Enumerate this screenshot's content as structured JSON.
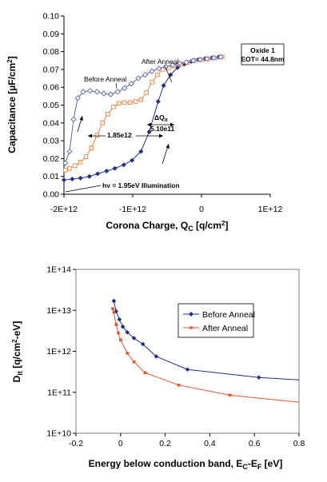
{
  "chart_data": [
    {
      "type": "line",
      "xlabel": "Corona Charge, Q",
      "xlabel_sub": "C",
      "xlabel_unit": " [q/cm",
      "xlabel_sup": "2",
      "xlabel_end": "]",
      "ylabel": "Capacitance [µF/cm",
      "ylabel_sup": "2",
      "ylabel_end": "]",
      "xlim": [
        -2000000000000.0,
        1000000000000.0
      ],
      "ylim": [
        0,
        0.1
      ],
      "x_ticks": [
        {
          "v": -2000000000000.0,
          "label": "-2E+12"
        },
        {
          "v": -1000000000000.0,
          "label": "-1E+12"
        },
        {
          "v": 0,
          "label": "0"
        },
        {
          "v": 1000000000000.0,
          "label": "1E+12"
        }
      ],
      "y_ticks": [
        {
          "v": 0,
          "label": "0.00"
        },
        {
          "v": 0.01,
          "label": "0.01"
        },
        {
          "v": 0.02,
          "label": "0.02"
        },
        {
          "v": 0.03,
          "label": "0.03"
        },
        {
          "v": 0.04,
          "label": "0.04"
        },
        {
          "v": 0.05,
          "label": "0.05"
        },
        {
          "v": 0.06,
          "label": "0.06"
        },
        {
          "v": 0.07,
          "label": "0.07"
        },
        {
          "v": 0.08,
          "label": "0.08"
        },
        {
          "v": 0.09,
          "label": "0.09"
        },
        {
          "v": 0.1,
          "label": "0.10"
        }
      ],
      "grid": false,
      "series": [
        {
          "color": "#1f2f8f",
          "marker": "filled-diamond",
          "x": [
            -2000000000000.0,
            -1880000000000.0,
            -1760000000000.0,
            -1630000000000.0,
            -1510000000000.0,
            -1380000000000.0,
            -1260000000000.0,
            -1130000000000.0,
            -1010000000000.0,
            -880000000000.0,
            -760000000000.0,
            -630000000000.0,
            -550000000000.0,
            -450000000000.0,
            -350000000000.0,
            -250000000000.0,
            -150000000000.0,
            -50000000000.0,
            50000000000.0,
            150000000000.0,
            250000000000.0
          ],
          "y": [
            0.008,
            0.0085,
            0.009,
            0.01,
            0.0115,
            0.013,
            0.0145,
            0.0165,
            0.019,
            0.024,
            0.035,
            0.052,
            0.061,
            0.067,
            0.071,
            0.073,
            0.0745,
            0.0755,
            0.076,
            0.0765,
            0.077
          ]
        },
        {
          "color": "#f07f3c",
          "marker": "open-square",
          "x": [
            -1980000000000.0,
            -1920000000000.0,
            -1840000000000.0,
            -1760000000000.0,
            -1680000000000.0,
            -1600000000000.0,
            -1520000000000.0,
            -1440000000000.0,
            -1360000000000.0,
            -1280000000000.0,
            -1200000000000.0,
            -1120000000000.0,
            -1040000000000.0,
            -960000000000.0,
            -880000000000.0,
            -800000000000.0,
            -720000000000.0,
            -640000000000.0,
            -560000000000.0,
            -480000000000.0,
            -400000000000.0,
            -300000000000.0,
            -200000000000.0,
            -100000000000.0,
            0.0,
            100000000000.0,
            200000000000.0,
            300000000000.0
          ],
          "y": [
            0.0135,
            0.0145,
            0.016,
            0.018,
            0.021,
            0.026,
            0.033,
            0.04,
            0.045,
            0.049,
            0.051,
            0.0515,
            0.0515,
            0.052,
            0.053,
            0.057,
            0.063,
            0.067,
            0.07,
            0.071,
            0.072,
            0.073,
            0.074,
            0.075,
            0.0755,
            0.076,
            0.0765,
            0.077
          ]
        },
        {
          "color": "#5a66b8",
          "marker": "open-diamond",
          "x": [
            -1980000000000.0,
            -1920000000000.0,
            -1860000000000.0,
            -1800000000000.0,
            -1720000000000.0,
            -1620000000000.0,
            -1520000000000.0,
            -1420000000000.0,
            -1320000000000.0,
            -1220000000000.0,
            -1120000000000.0,
            -1020000000000.0,
            -920000000000.0,
            -820000000000.0,
            -720000000000.0,
            -620000000000.0,
            -520000000000.0,
            -420000000000.0,
            -320000000000.0,
            -220000000000.0,
            -120000000000.0,
            -20000000000.0,
            80000000000.0,
            180000000000.0,
            280000000000.0
          ],
          "y": [
            0.0175,
            0.024,
            0.042,
            0.054,
            0.0575,
            0.058,
            0.0575,
            0.0565,
            0.056,
            0.0575,
            0.0595,
            0.062,
            0.065,
            0.067,
            0.069,
            0.0705,
            0.0715,
            0.0725,
            0.0735,
            0.074,
            0.075,
            0.0755,
            0.076,
            0.0765,
            0.077
          ]
        }
      ],
      "annotations": {
        "before": "Before Anneal",
        "after": "After Anneal",
        "dq": "ΔQ",
        "dq_sub": "it",
        "val1": "5.10e11",
        "val2": "1.85e12",
        "illum": "hν = 1.95eV Illumination",
        "box1": "Oxide 1",
        "box2": "EOT= 44.8nm"
      }
    },
    {
      "type": "line",
      "yscale": "log",
      "xlabel": "Energy below conduction band, E",
      "xlabel_sub1": "C",
      "xlabel_mid": "-E",
      "xlabel_sub2": "F",
      "xlabel_end": " [eV]",
      "ylabel": "D",
      "ylabel_sub": "it",
      "ylabel_unit": " [q/cm",
      "ylabel_sup": "2",
      "ylabel_end": "-eV]",
      "xlim": [
        -0.2,
        0.8
      ],
      "ylim": [
        10000000000.0,
        100000000000000.0
      ],
      "x_ticks": [
        {
          "v": -0.2,
          "label": "-0.2"
        },
        {
          "v": 0,
          "label": "0"
        },
        {
          "v": 0.2,
          "label": "0.2"
        },
        {
          "v": 0.4,
          "label": "0.4"
        },
        {
          "v": 0.6,
          "label": "0.6"
        },
        {
          "v": 0.8,
          "label": "0.8"
        }
      ],
      "y_ticks": [
        {
          "v": 10000000000.0,
          "label": "1E+10"
        },
        {
          "v": 100000000000.0,
          "label": "1E+11"
        },
        {
          "v": 1000000000000.0,
          "label": "1E+12"
        },
        {
          "v": 10000000000000.0,
          "label": "1E+13"
        },
        {
          "v": 100000000000000.0,
          "label": "1E+14"
        }
      ],
      "grid": false,
      "legend_position": "top-right",
      "series": [
        {
          "name": "Before Anneal",
          "color": "#1f2f8f",
          "x": [
            -0.03,
            -0.02,
            -0.005,
            0.01,
            0.03,
            0.06,
            0.1,
            0.16,
            0.3,
            0.62,
            0.8
          ],
          "y": [
            17000000000000.0,
            9500000000000.0,
            6000000000000.0,
            4000000000000.0,
            2900000000000.0,
            2100000000000.0,
            1500000000000.0,
            750000000000.0,
            360000000000.0,
            230000000000.0,
            200000000000.0
          ]
        },
        {
          "name": "After Anneal",
          "color": "#e8542a",
          "x": [
            -0.035,
            -0.03,
            -0.02,
            -0.01,
            0.0,
            0.03,
            0.06,
            0.11,
            0.26,
            0.49,
            0.8
          ],
          "y": [
            11000000000000.0,
            9000000000000.0,
            4500000000000.0,
            2800000000000.0,
            1900000000000.0,
            900000000000.0,
            550000000000.0,
            300000000000.0,
            150000000000.0,
            85000000000.0,
            57000000000.0
          ]
        }
      ]
    }
  ]
}
